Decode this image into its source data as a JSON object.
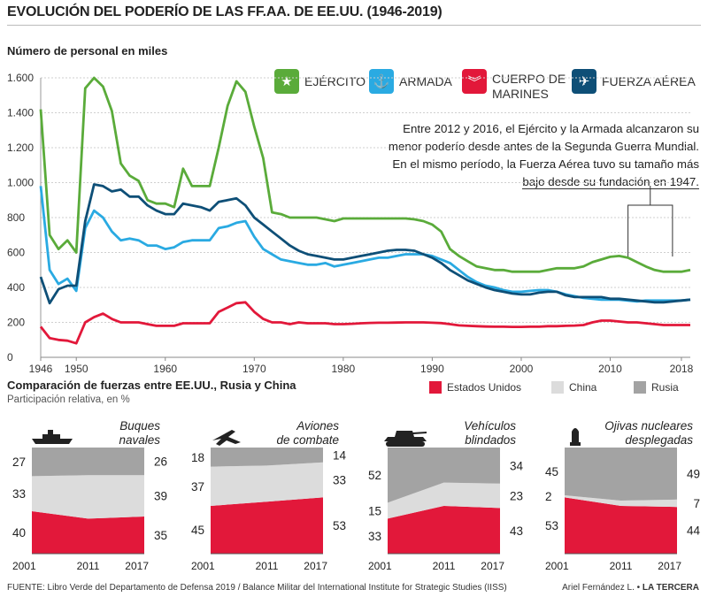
{
  "title": "EVOLUCIÓN DEL PODERÍO DE LAS FF.AA. DE EE.UU. (1946-2019)",
  "subtitle": "Número de personal en miles",
  "legend": [
    {
      "label": "EJÉRCITO",
      "color": "#5aab3a",
      "icon": "star-icon",
      "glyph": "★"
    },
    {
      "label": "ARMADA",
      "color": "#2aaae2",
      "icon": "anchor-icon",
      "glyph": "⚓"
    },
    {
      "label": "CUERPO DE MARINES",
      "label_line1": "CUERPO DE",
      "label_line2": "MARINES",
      "color": "#e2183a",
      "icon": "chevron-icon",
      "glyph": "︾"
    },
    {
      "label": "FUERZA AÉREA",
      "color": "#0e4f77",
      "icon": "jet-icon",
      "glyph": "✈"
    }
  ],
  "annotation": {
    "line1": "Entre 2012 y 2016, el Ejército y la Armada alcanzaron su",
    "line2": "menor poderío desde antes de la Segunda Guerra Mundial.",
    "line3": "En el mismo período, la Fuerza Aérea tuvo su tamaño más",
    "line4": "bajo desde su fundación en 1947."
  },
  "chart_data": [
    {
      "type": "line",
      "title": "EVOLUCIÓN DEL PODERÍO DE LAS FF.AA. DE EE.UU. (1946-2019)",
      "ylabel": "Número de personal en miles",
      "ylim": [
        0,
        1600
      ],
      "xlim": [
        1946,
        2019
      ],
      "yticks": [
        0,
        200,
        400,
        600,
        800,
        1000,
        1200,
        1400,
        1600
      ],
      "ytick_labels": [
        "0",
        "200",
        "400",
        "600",
        "800",
        "1.000",
        "1.200",
        "1.400",
        "1.600"
      ],
      "xticks": [
        1946,
        1950,
        1960,
        1970,
        1980,
        1990,
        2000,
        2010,
        2018
      ],
      "grid": true,
      "series": [
        {
          "name": "EJÉRCITO",
          "color": "#5aab3a",
          "x": [
            1946,
            1947,
            1948,
            1949,
            1950,
            1951,
            1952,
            1953,
            1954,
            1955,
            1956,
            1957,
            1958,
            1959,
            1960,
            1961,
            1962,
            1963,
            1964,
            1965,
            1966,
            1967,
            1968,
            1969,
            1970,
            1971,
            1972,
            1973,
            1974,
            1975,
            1976,
            1977,
            1978,
            1979,
            1980,
            1981,
            1982,
            1983,
            1984,
            1985,
            1986,
            1987,
            1988,
            1989,
            1990,
            1991,
            1992,
            1993,
            1994,
            1995,
            1996,
            1997,
            1998,
            1999,
            2000,
            2001,
            2002,
            2003,
            2004,
            2005,
            2006,
            2007,
            2008,
            2009,
            2010,
            2011,
            2012,
            2013,
            2014,
            2015,
            2016,
            2017,
            2018,
            2019
          ],
          "values": [
            1420,
            700,
            620,
            670,
            600,
            1540,
            1600,
            1550,
            1410,
            1110,
            1040,
            1010,
            900,
            880,
            880,
            860,
            1080,
            980,
            980,
            980,
            1200,
            1440,
            1580,
            1520,
            1320,
            1140,
            830,
            820,
            800,
            800,
            800,
            800,
            790,
            780,
            795,
            795,
            795,
            795,
            795,
            795,
            795,
            795,
            790,
            780,
            760,
            720,
            620,
            580,
            550,
            520,
            510,
            500,
            500,
            490,
            490,
            490,
            490,
            500,
            510,
            510,
            510,
            520,
            545,
            560,
            575,
            580,
            570,
            545,
            520,
            500,
            490,
            490,
            490,
            500
          ]
        },
        {
          "name": "ARMADA",
          "color": "#2aaae2",
          "x": [
            1946,
            1947,
            1948,
            1949,
            1950,
            1951,
            1952,
            1953,
            1954,
            1955,
            1956,
            1957,
            1958,
            1959,
            1960,
            1961,
            1962,
            1963,
            1964,
            1965,
            1966,
            1967,
            1968,
            1969,
            1970,
            1971,
            1972,
            1973,
            1974,
            1975,
            1976,
            1977,
            1978,
            1979,
            1980,
            1981,
            1982,
            1983,
            1984,
            1985,
            1986,
            1987,
            1988,
            1989,
            1990,
            1991,
            1992,
            1993,
            1994,
            1995,
            1996,
            1997,
            1998,
            1999,
            2000,
            2001,
            2002,
            2003,
            2004,
            2005,
            2006,
            2007,
            2008,
            2009,
            2010,
            2011,
            2012,
            2013,
            2014,
            2015,
            2016,
            2017,
            2018,
            2019
          ],
          "values": [
            980,
            500,
            420,
            450,
            380,
            740,
            840,
            800,
            720,
            670,
            680,
            670,
            640,
            640,
            620,
            630,
            660,
            670,
            670,
            670,
            740,
            750,
            770,
            780,
            690,
            620,
            590,
            560,
            550,
            540,
            530,
            530,
            540,
            520,
            530,
            540,
            550,
            560,
            570,
            570,
            580,
            590,
            590,
            590,
            580,
            560,
            540,
            500,
            460,
            430,
            410,
            400,
            385,
            375,
            375,
            380,
            385,
            385,
            375,
            360,
            350,
            340,
            335,
            330,
            330,
            330,
            325,
            320,
            325,
            325,
            325,
            325,
            325,
            330
          ]
        },
        {
          "name": "CUERPO DE MARINES",
          "color": "#e2183a",
          "x": [
            1946,
            1947,
            1948,
            1949,
            1950,
            1951,
            1952,
            1953,
            1954,
            1955,
            1956,
            1957,
            1958,
            1959,
            1960,
            1961,
            1962,
            1963,
            1964,
            1965,
            1966,
            1967,
            1968,
            1969,
            1970,
            1971,
            1972,
            1973,
            1974,
            1975,
            1976,
            1977,
            1978,
            1979,
            1980,
            1981,
            1982,
            1983,
            1984,
            1985,
            1986,
            1987,
            1988,
            1989,
            1990,
            1991,
            1992,
            1993,
            1994,
            1995,
            1996,
            1997,
            1998,
            1999,
            2000,
            2001,
            2002,
            2003,
            2004,
            2005,
            2006,
            2007,
            2008,
            2009,
            2010,
            2011,
            2012,
            2013,
            2014,
            2015,
            2016,
            2017,
            2018,
            2019
          ],
          "values": [
            175,
            110,
            100,
            95,
            80,
            200,
            230,
            250,
            220,
            200,
            200,
            200,
            190,
            180,
            180,
            180,
            195,
            195,
            195,
            195,
            260,
            285,
            310,
            315,
            260,
            220,
            200,
            200,
            190,
            200,
            195,
            195,
            195,
            190,
            190,
            192,
            195,
            197,
            198,
            198,
            199,
            200,
            200,
            200,
            198,
            196,
            190,
            183,
            180,
            178,
            176,
            175,
            175,
            174,
            174,
            175,
            175,
            178,
            178,
            180,
            182,
            185,
            200,
            210,
            210,
            205,
            200,
            200,
            195,
            190,
            185,
            185,
            185,
            185
          ]
        },
        {
          "name": "FUERZA AÉREA",
          "color": "#0e4f77",
          "x": [
            1946,
            1947,
            1948,
            1949,
            1950,
            1951,
            1952,
            1953,
            1954,
            1955,
            1956,
            1957,
            1958,
            1959,
            1960,
            1961,
            1962,
            1963,
            1964,
            1965,
            1966,
            1967,
            1968,
            1969,
            1970,
            1971,
            1972,
            1973,
            1974,
            1975,
            1976,
            1977,
            1978,
            1979,
            1980,
            1981,
            1982,
            1983,
            1984,
            1985,
            1986,
            1987,
            1988,
            1989,
            1990,
            1991,
            1992,
            1993,
            1994,
            1995,
            1996,
            1997,
            1998,
            1999,
            2000,
            2001,
            2002,
            2003,
            2004,
            2005,
            2006,
            2007,
            2008,
            2009,
            2010,
            2011,
            2012,
            2013,
            2014,
            2015,
            2016,
            2017,
            2018,
            2019
          ],
          "values": [
            460,
            310,
            390,
            410,
            410,
            780,
            990,
            980,
            950,
            960,
            920,
            920,
            870,
            840,
            820,
            820,
            880,
            870,
            860,
            840,
            890,
            900,
            910,
            870,
            800,
            760,
            720,
            680,
            640,
            610,
            590,
            580,
            570,
            560,
            560,
            570,
            580,
            590,
            600,
            610,
            615,
            615,
            610,
            590,
            570,
            540,
            500,
            470,
            440,
            420,
            400,
            385,
            375,
            365,
            360,
            360,
            370,
            375,
            375,
            355,
            345,
            345,
            345,
            345,
            335,
            335,
            330,
            325,
            320,
            315,
            315,
            320,
            325,
            330
          ]
        }
      ]
    },
    {
      "type": "area",
      "title": "Buques navales",
      "x": [
        "2001",
        "2011",
        "2017"
      ],
      "series": [
        {
          "name": "Estados Unidos",
          "values": [
            40,
            33,
            35
          ]
        },
        {
          "name": "China",
          "values": [
            33,
            41,
            39
          ]
        },
        {
          "name": "Rusia",
          "values": [
            27,
            26,
            26
          ]
        }
      ]
    },
    {
      "type": "area",
      "title": "Aviones de combate",
      "x": [
        "2001",
        "2011",
        "2017"
      ],
      "series": [
        {
          "name": "Estados Unidos",
          "values": [
            45,
            49,
            53
          ]
        },
        {
          "name": "China",
          "values": [
            37,
            34,
            33
          ]
        },
        {
          "name": "Rusia",
          "values": [
            18,
            17,
            14
          ]
        }
      ]
    },
    {
      "type": "area",
      "title": "Vehículos blindados",
      "x": [
        "2001",
        "2011",
        "2017"
      ],
      "series": [
        {
          "name": "Estados Unidos",
          "values": [
            33,
            45,
            43
          ]
        },
        {
          "name": "China",
          "values": [
            15,
            22,
            23
          ]
        },
        {
          "name": "Rusia",
          "values": [
            52,
            33,
            34
          ]
        }
      ]
    },
    {
      "type": "area",
      "title": "Ojivas nucleares desplegadas",
      "x": [
        "2001",
        "2011",
        "2017"
      ],
      "series": [
        {
          "name": "Estados Unidos",
          "values": [
            53,
            45,
            44
          ]
        },
        {
          "name": "China",
          "values": [
            2,
            5,
            7
          ]
        },
        {
          "name": "Rusia",
          "values": [
            45,
            50,
            49
          ]
        }
      ]
    }
  ],
  "comparison": {
    "title": "Comparación de fuerzas entre EE.UU., Rusia y China",
    "subtitle": "Participación relativa, en %",
    "legend": [
      {
        "label": "Estados Unidos",
        "color": "#e2183a"
      },
      {
        "label": "China",
        "color": "#dcdcdc"
      },
      {
        "label": "Rusia",
        "color": "#a3a3a3"
      }
    ],
    "panels": [
      {
        "title_line1": "Buques",
        "title_line2": "navales",
        "icon": "ship-icon",
        "left_labels": [
          "27",
          "33",
          "40"
        ],
        "right_labels": [
          "26",
          "39",
          "35"
        ]
      },
      {
        "title_line1": "Aviones",
        "title_line2": "de combate",
        "icon": "fighter-jet-icon",
        "left_labels": [
          "18",
          "37",
          "45"
        ],
        "right_labels": [
          "14",
          "33",
          "53"
        ]
      },
      {
        "title_line1": "Vehículos",
        "title_line2": "blindados",
        "icon": "tank-icon",
        "left_labels": [
          "52",
          "15",
          "33"
        ],
        "right_labels": [
          "34",
          "23",
          "43"
        ]
      },
      {
        "title_line1": "Ojivas nucleares",
        "title_line2": "desplegadas",
        "icon": "warhead-icon",
        "left_labels": [
          "45",
          "2",
          "53"
        ],
        "right_labels": [
          "49",
          "7",
          "44"
        ]
      }
    ]
  },
  "footer": {
    "source": "FUENTE: Libro Verde del Departamento de Defensa 2019 / Balance Militar del International Institute for Strategic Studies (IISS)",
    "author": "Ariel Fernández L.",
    "outlet": "LA TERCERA"
  }
}
